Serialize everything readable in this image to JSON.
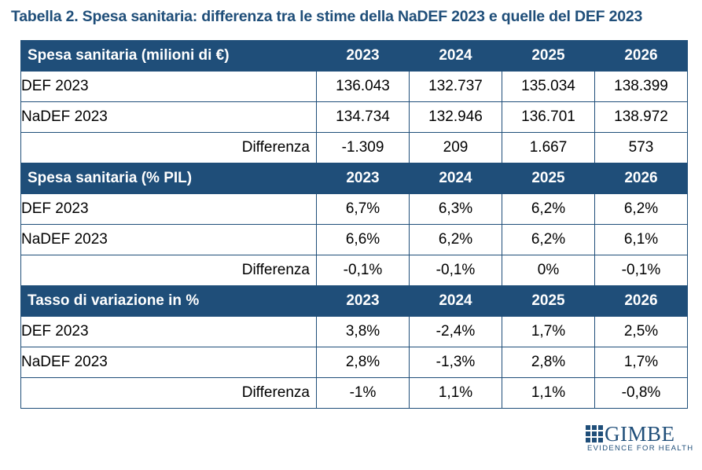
{
  "title": "Tabella 2. Spesa sanitaria: differenza tra le stime della NaDEF 2023 e quelle del DEF 2023",
  "sections": [
    {
      "header": "Spesa sanitaria (milioni di €)",
      "years": [
        "2023",
        "2024",
        "2025",
        "2026"
      ],
      "rows": [
        {
          "name": "DEF 2023",
          "values": [
            "136.043",
            "132.737",
            "135.034",
            "138.399"
          ]
        },
        {
          "name": "NaDEF 2023",
          "values": [
            "134.734",
            "132.946",
            "136.701",
            "138.972"
          ]
        },
        {
          "name": "Differenza",
          "values": [
            "-1.309",
            "209",
            "1.667",
            "573"
          ]
        }
      ]
    },
    {
      "header": "Spesa sanitaria (% PIL)",
      "years": [
        "2023",
        "2024",
        "2025",
        "2026"
      ],
      "rows": [
        {
          "name": "DEF 2023",
          "values": [
            "6,7%",
            "6,3%",
            "6,2%",
            "6,2%"
          ]
        },
        {
          "name": "NaDEF 2023",
          "values": [
            "6,6%",
            "6,2%",
            "6,2%",
            "6,1%"
          ]
        },
        {
          "name": "Differenza",
          "values": [
            "-0,1%",
            "-0,1%",
            "0%",
            "-0,1%"
          ]
        }
      ]
    },
    {
      "header": "Tasso di variazione in %",
      "years": [
        "2023",
        "2024",
        "2025",
        "2026"
      ],
      "rows": [
        {
          "name": "DEF 2023",
          "values": [
            "3,8%",
            "-2,4%",
            "1,7%",
            "2,5%"
          ]
        },
        {
          "name": "NaDEF 2023",
          "values": [
            "2,8%",
            "-1,3%",
            "2,8%",
            "1,7%"
          ]
        },
        {
          "name": "Differenza",
          "values": [
            "-1%",
            "1,1%",
            "1,1%",
            "-0,8%"
          ]
        }
      ]
    }
  ],
  "logo": {
    "word": "GIMBE",
    "tagline": "EVIDENCE FOR HEALTH"
  },
  "colors": {
    "accent": "#1f4e79",
    "header_text": "#ffffff"
  }
}
